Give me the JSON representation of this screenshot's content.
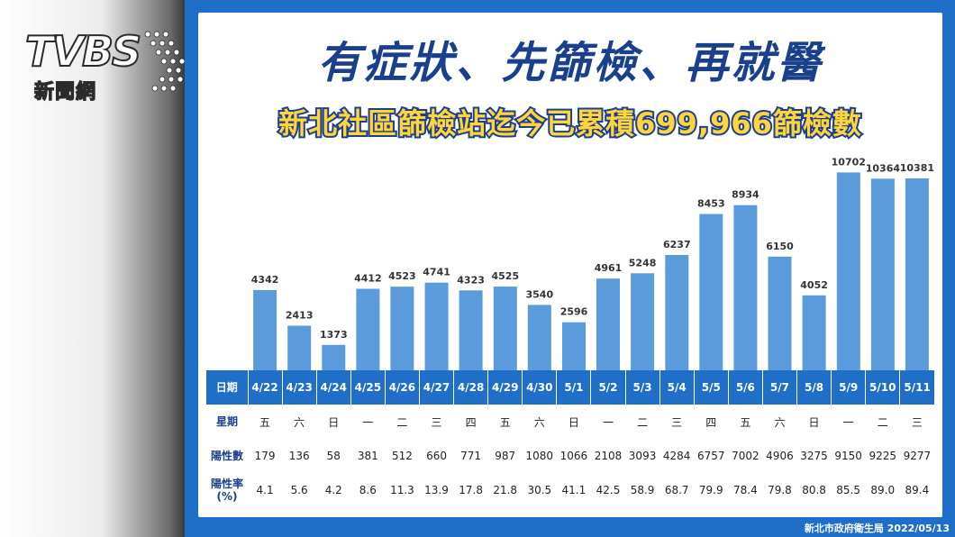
{
  "logo": {
    "main": "TVBS",
    "sub": "新聞網"
  },
  "title": "有症狀、先篩檢、再就醫",
  "subtitle": "新北社區篩檢站迄今已累積699,966篩檢數",
  "source": "新北市政府衛生局 2022/05/13",
  "colors": {
    "bar": "#5b9bdb",
    "header": "#1f6fc8",
    "title": "#1a3f8c",
    "subtitle": "#ffd53a"
  },
  "chart_data": {
    "type": "bar",
    "categories": [
      "4/22",
      "4/23",
      "4/24",
      "4/25",
      "4/26",
      "4/27",
      "4/28",
      "4/29",
      "4/30",
      "5/1",
      "5/2",
      "5/3",
      "5/4",
      "5/5",
      "5/6",
      "5/7",
      "5/8",
      "5/9",
      "5/10",
      "5/11"
    ],
    "values": [
      4342,
      2413,
      1373,
      4412,
      4523,
      4741,
      4323,
      4525,
      3540,
      2596,
      4961,
      5248,
      6237,
      8453,
      8934,
      6150,
      4052,
      10702,
      10364,
      10381
    ],
    "ylim": [
      0,
      11500
    ],
    "grid": false,
    "legend": "none"
  },
  "table": {
    "headers": {
      "date": "日期",
      "weekday": "星期",
      "positive": "陽性數",
      "rate": "陽性率\n(%)"
    },
    "weekdays": [
      "五",
      "六",
      "日",
      "一",
      "二",
      "三",
      "四",
      "五",
      "六",
      "日",
      "一",
      "二",
      "三",
      "四",
      "五",
      "六",
      "日",
      "一",
      "二",
      "三"
    ],
    "positives": [
      "179",
      "136",
      "58",
      "381",
      "512",
      "660",
      "771",
      "987",
      "1080",
      "1066",
      "2108",
      "3093",
      "4284",
      "6757",
      "7002",
      "4906",
      "3275",
      "9150",
      "9225",
      "9277"
    ],
    "rates": [
      "4.1",
      "5.6",
      "4.2",
      "8.6",
      "11.3",
      "13.9",
      "17.8",
      "21.8",
      "30.5",
      "41.1",
      "42.5",
      "58.9",
      "68.7",
      "79.9",
      "78.4",
      "79.8",
      "80.8",
      "85.5",
      "89.0",
      "89.4"
    ]
  }
}
